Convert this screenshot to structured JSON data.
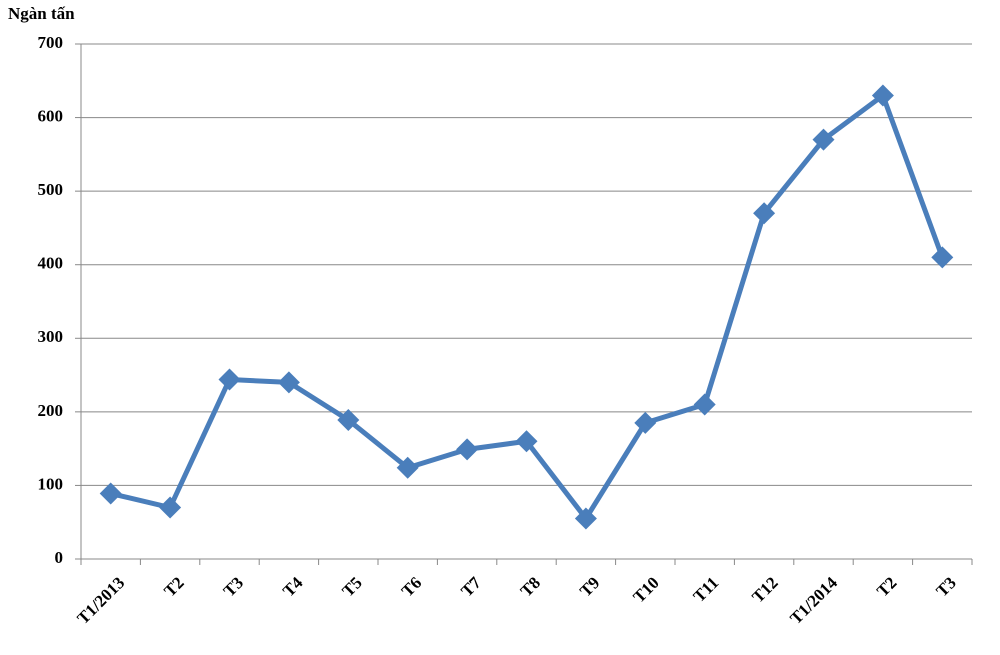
{
  "chart_data": {
    "type": "line",
    "y_label": "Ngàn tấn",
    "categories": [
      "T1/2013",
      "T2",
      "T3",
      "T4",
      "T5",
      "T6",
      "T7",
      "T8",
      "T9",
      "T10",
      "T11",
      "T12",
      "T1/2014",
      "T2",
      "T3"
    ],
    "series": [
      {
        "color": "#4a7ebb",
        "values": [
          89,
          70,
          244,
          240,
          189,
          124,
          149,
          160,
          55,
          185,
          210,
          470,
          570,
          630,
          410
        ]
      }
    ],
    "ylim": [
      0,
      700
    ],
    "yticks": [
      0,
      100,
      200,
      300,
      400,
      500,
      600,
      700
    ],
    "grid": true
  }
}
